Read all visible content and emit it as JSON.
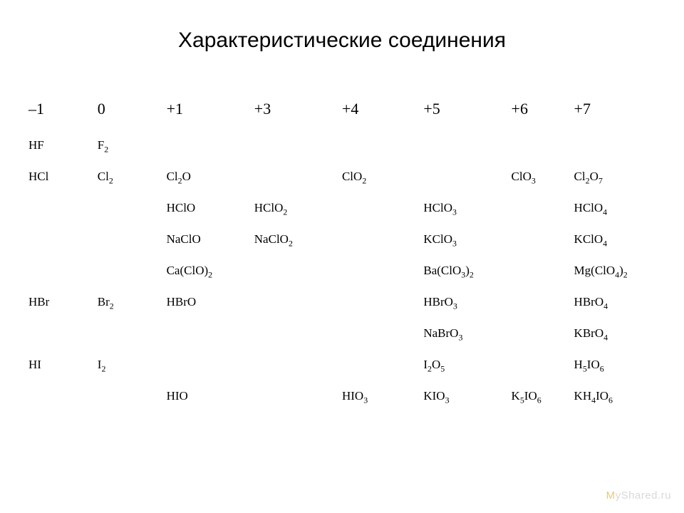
{
  "title": "Характеристические соединения",
  "watermark_text": "yShared.ru",
  "watermark_prefix": "M",
  "table": {
    "background_color": "#ffffff",
    "text_color": "#000000",
    "header_fontfamily": "Times New Roman",
    "body_fontfamily": "Times New Roman",
    "header_fontsize": 22,
    "body_fontsize": 17,
    "columns": [
      "-1",
      "0",
      "+1",
      "+3",
      "+4",
      "+5",
      "+6",
      "+7"
    ],
    "col_widths_pct": [
      11,
      11,
      14,
      14,
      13,
      14,
      10,
      13
    ],
    "headers": [
      "–1",
      "0",
      "+1",
      "+3",
      "+4",
      "+5",
      "+6",
      "+7"
    ],
    "rows": [
      [
        "HF",
        "F<sub>2</sub>",
        "",
        "",
        "",
        "",
        "",
        ""
      ],
      [
        "HCl",
        "Cl<sub>2</sub>",
        "Cl<sub>2</sub>O",
        "",
        "ClO<sub>2</sub>",
        "",
        "ClO<sub>3</sub>",
        "Cl<sub>2</sub>O<sub>7</sub>"
      ],
      [
        "",
        "",
        "HClO",
        "HClO<sub>2</sub>",
        "",
        "HClO<sub>3</sub>",
        "",
        "HClO<sub>4</sub>"
      ],
      [
        "",
        "",
        "NaClO",
        "NaClO<sub>2</sub>",
        "",
        "KClO<sub>3</sub>",
        "",
        "KClO<sub>4</sub>"
      ],
      [
        "",
        "",
        "Ca(ClO)<sub>2</sub>",
        "",
        "",
        "Ba(ClO<sub>3</sub>)<sub>2</sub>",
        "",
        "Mg(ClO<sub>4</sub>)<sub>2</sub>"
      ],
      [
        "HBr",
        "Br<sub>2</sub>",
        "HBrO",
        "",
        "",
        "HBrO<sub>3</sub>",
        "",
        "HBrO<sub>4</sub>"
      ],
      [
        "",
        "",
        "",
        "",
        "",
        "NaBrO<sub>3</sub>",
        "",
        "KBrO<sub>4</sub>"
      ],
      [
        "HI",
        "I<sub>2</sub>",
        "",
        "",
        "",
        "I<sub>2</sub>O<sub>5</sub>",
        "",
        "H<sub>5</sub>IO<sub>6</sub>"
      ],
      [
        "",
        "",
        "HIO",
        "",
        "HIO<sub>3</sub>",
        "KIO<sub>3</sub>",
        "K<sub>5</sub>IO<sub>6</sub>",
        "KH<sub>4</sub>IO<sub>6</sub>"
      ]
    ]
  }
}
